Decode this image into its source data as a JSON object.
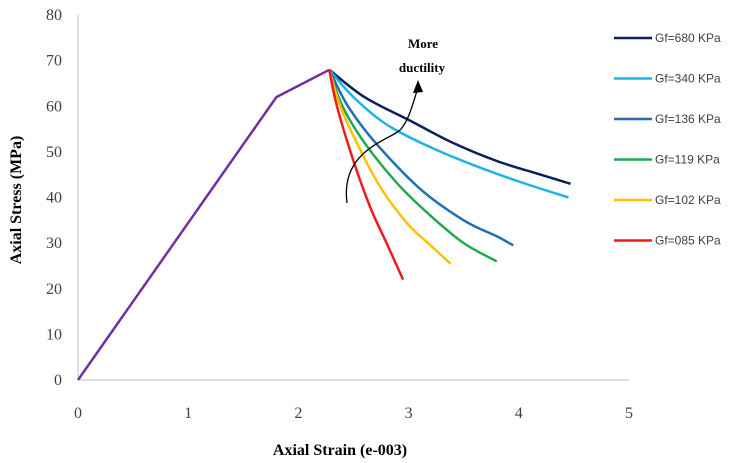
{
  "chart_data": {
    "type": "line",
    "xlabel": "Axial Strain (e-003)",
    "ylabel": "Axial Stress (MPa)",
    "xlim": [
      0,
      5
    ],
    "ylim": [
      0,
      80
    ],
    "xticks": [
      "0",
      "1",
      "2",
      "3",
      "4",
      "5"
    ],
    "yticks": [
      "0",
      "10",
      "20",
      "30",
      "40",
      "50",
      "60",
      "70",
      "80"
    ],
    "grid": false,
    "legend_position": "right",
    "annotation": {
      "lines": [
        "More",
        "ductility"
      ],
      "arrow": true
    },
    "series": [
      {
        "name": "Gf=680 KPa",
        "color": "#0d1f5a",
        "x": [
          2.28,
          2.6,
          3.0,
          3.4,
          3.8,
          4.2,
          4.47
        ],
        "y": [
          68,
          62,
          57,
          52,
          48,
          45,
          43
        ]
      },
      {
        "name": "Gf=340 KPa",
        "color": "#1cb3ea",
        "x": [
          2.28,
          2.5,
          2.8,
          3.2,
          3.6,
          4.0,
          4.45
        ],
        "y": [
          68,
          62,
          56,
          51,
          47,
          43.5,
          40
        ]
      },
      {
        "name": "Gf=136 KPa",
        "color": "#1f6fb8",
        "x": [
          2.28,
          2.45,
          2.7,
          3.1,
          3.5,
          3.8,
          3.95
        ],
        "y": [
          68,
          60,
          52,
          42,
          35,
          31.5,
          29.5
        ]
      },
      {
        "name": "Gf=119 KPa",
        "color": "#1faa50",
        "x": [
          2.28,
          2.4,
          2.6,
          2.9,
          3.2,
          3.5,
          3.8
        ],
        "y": [
          68,
          60,
          52,
          43,
          36,
          30,
          26
        ]
      },
      {
        "name": "Gf=102 KPa",
        "color": "#ffc000",
        "x": [
          2.28,
          2.38,
          2.55,
          2.75,
          3.0,
          3.2,
          3.38
        ],
        "y": [
          68,
          60,
          51,
          42,
          34,
          29.5,
          25.5
        ]
      },
      {
        "name": "Gf=085 KPa",
        "color": "#ee1c1c",
        "x": [
          2.28,
          2.35,
          2.5,
          2.65,
          2.8,
          2.95
        ],
        "y": [
          68,
          60,
          48,
          38,
          30,
          22
        ]
      },
      {
        "name": "",
        "color": "#7030a0",
        "x": [
          0,
          1.8,
          2.28
        ],
        "y": [
          0,
          62,
          68
        ]
      }
    ]
  }
}
